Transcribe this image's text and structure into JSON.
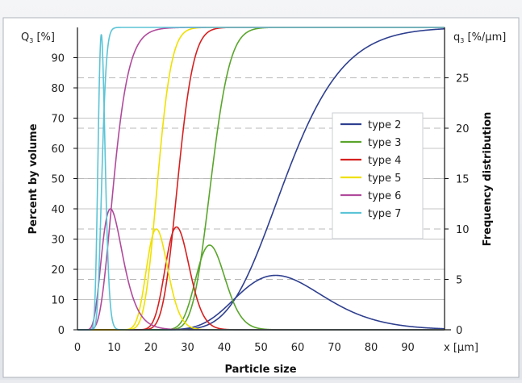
{
  "chart_data": {
    "type": "line",
    "left_axis_title": "Percent by volume",
    "right_axis_title": "Frequency distribution",
    "xlabel": "Particle size",
    "left_unit_label": "Q",
    "left_unit_sub": "3",
    "left_unit_rest": " [%]",
    "right_unit_label": "q",
    "right_unit_sub": "3",
    "right_unit_rest": " [%/µm]",
    "x_unit_label": "x [µm]",
    "xlim": [
      0,
      100
    ],
    "ylim_left": [
      0,
      100
    ],
    "ylim_right": [
      0,
      30
    ],
    "x_ticks": [
      "0",
      "10",
      "20",
      "30",
      "40",
      "50",
      "60",
      "70",
      "80",
      "90"
    ],
    "y_left_ticks": [
      "0",
      "10",
      "20",
      "30",
      "40",
      "50",
      "60",
      "70",
      "80",
      "90"
    ],
    "y_right_ticks": [
      "0",
      "5",
      "10",
      "15",
      "20",
      "25"
    ],
    "legend_position": "center-right",
    "grid": "horizontal dashed",
    "series": [
      {
        "name": "type 2",
        "color": "#2e3f8f",
        "peak_x": 54,
        "peak_q3": 5.4,
        "q3_90_x": 75
      },
      {
        "name": "type 3",
        "color": "#5aa52c",
        "peak_x": 36,
        "peak_q3": 8.4,
        "q3_90_x": 42
      },
      {
        "name": "type 4",
        "color": "#d62020",
        "peak_x": 27,
        "peak_q3": 10.2,
        "q3_90_x": 32
      },
      {
        "name": "type 5",
        "color": "#f0e000",
        "peak_x": 21.5,
        "peak_q3": 10.0,
        "q3_90_x": 26
      },
      {
        "name": "type 6",
        "color": "#b04a9c",
        "peak_x": 9,
        "peak_q3": 12.0,
        "q3_90_x": 15
      },
      {
        "name": "type 7",
        "color": "#5bc4d6",
        "peak_x": 6.5,
        "peak_q3": 29.3,
        "q3_90_x": 8
      }
    ]
  }
}
